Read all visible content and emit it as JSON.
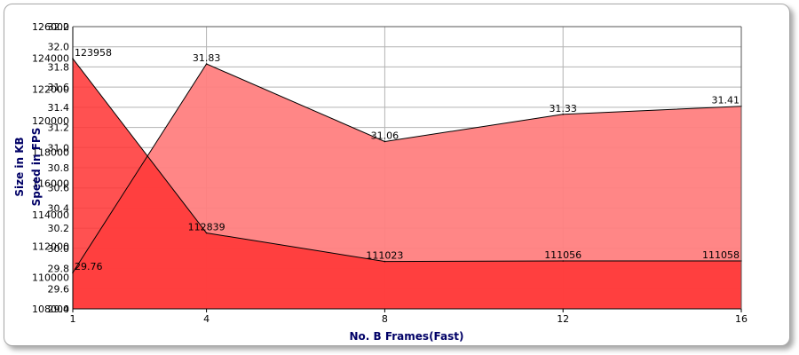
{
  "chart_data": {
    "type": "area",
    "x": [
      1,
      4,
      8,
      12,
      16
    ],
    "xlabel": "No. B Frames(Fast)",
    "series": [
      {
        "axis": "left-outer",
        "ylabel": "Size in KB",
        "values": [
          123958,
          112839,
          111023,
          111056,
          111058
        ],
        "labels": [
          "123958",
          "112839",
          "111023",
          "111056",
          "111058"
        ],
        "color": "#ff3333",
        "ylim": [
          108000,
          126000
        ],
        "ticks": [
          108000,
          110000,
          112000,
          114000,
          116000,
          118000,
          120000,
          122000,
          124000,
          126000
        ],
        "tick_labels": [
          "108000",
          "110000",
          "112000",
          "114000",
          "116000",
          "118000",
          "120000",
          "122000",
          "124000",
          "126000"
        ]
      },
      {
        "axis": "left-inner",
        "ylabel": "Speed in FPS",
        "values": [
          29.76,
          31.83,
          31.06,
          31.33,
          31.41
        ],
        "labels": [
          "29.76",
          "31.83",
          "31.06",
          "31.33",
          "31.41"
        ],
        "color": "#ff8080",
        "ylim": [
          29.4,
          32.2
        ],
        "ticks": [
          29.4,
          29.6,
          29.8,
          30.0,
          30.2,
          30.4,
          30.6,
          30.8,
          31.0,
          31.2,
          31.4,
          31.6,
          31.8,
          32.0,
          32.2
        ],
        "tick_labels": [
          "29.4",
          "29.6",
          "29.8",
          "30.0",
          "30.2",
          "30.4",
          "30.6",
          "30.8",
          "31.0",
          "31.2",
          "31.4",
          "31.6",
          "31.8",
          "32.0",
          "32.2"
        ]
      }
    ],
    "grid": true,
    "colors": {
      "plot_background": "#ffffff",
      "grid": "#b3b3b3",
      "axis_title": "#000066"
    }
  }
}
